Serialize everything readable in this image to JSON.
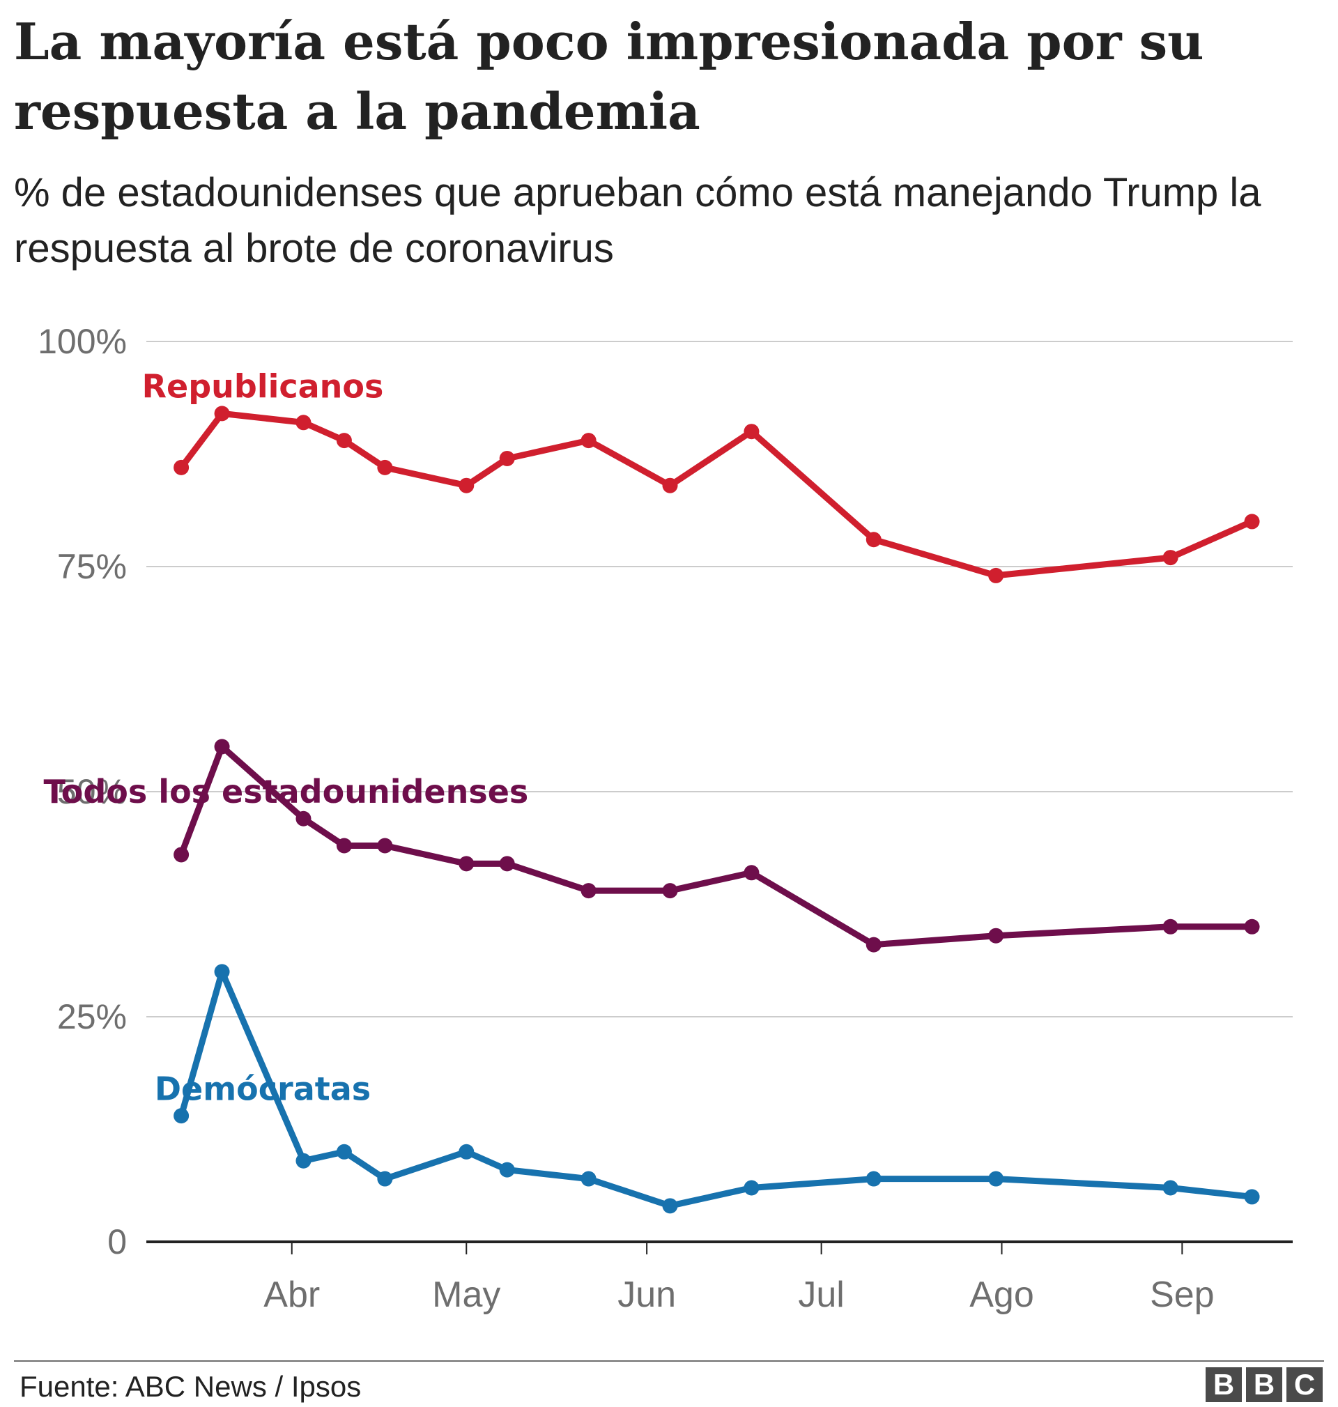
{
  "title": "La mayoría está poco impresionada por su respuesta a la pandemia",
  "subtitle": "% de estadounidenses que aprueban cómo está manejando Trump la respuesta al brote de coronavirus",
  "source": "Fuente: ABC News / Ipsos",
  "logo": [
    "B",
    "B",
    "C"
  ],
  "chart_data": {
    "type": "line",
    "ylim": [
      0,
      100
    ],
    "yticks": [
      0,
      25,
      50,
      75,
      100
    ],
    "ytick_labels": [
      "0",
      "25%",
      "50%",
      "75%",
      "100%"
    ],
    "grid": true,
    "x_axis": {
      "unit": "day of year 2020",
      "range": [
        67,
        264
      ],
      "ticks": [
        {
          "label": "Abr",
          "day": 92
        },
        {
          "label": "May",
          "day": 122
        },
        {
          "label": "Jun",
          "day": 153
        },
        {
          "label": "Jul",
          "day": 183
        },
        {
          "label": "Ago",
          "day": 214
        },
        {
          "label": "Sep",
          "day": 245
        }
      ]
    },
    "x": [
      73,
      80,
      94,
      101,
      108,
      122,
      129,
      143,
      157,
      171,
      192,
      213,
      243,
      257
    ],
    "series": [
      {
        "name": "Republicanos",
        "color": "#d01f2e",
        "label_at": [
          87,
          95
        ],
        "values": [
          86,
          92,
          91,
          89,
          86,
          84,
          87,
          89,
          84,
          90,
          78,
          74,
          76,
          80
        ]
      },
      {
        "name": "Todos los estadounidenses",
        "color": "#6e0e4b",
        "label_at": [
          91,
          50
        ],
        "values": [
          43,
          55,
          47,
          44,
          44,
          42,
          42,
          39,
          39,
          41,
          33,
          34,
          35,
          35
        ]
      },
      {
        "name": "Demócratas",
        "color": "#1772ae",
        "label_at": [
          87,
          17
        ],
        "values": [
          14,
          30,
          9,
          10,
          7,
          10,
          8,
          7,
          4,
          6,
          7,
          7,
          6,
          5
        ]
      }
    ]
  }
}
